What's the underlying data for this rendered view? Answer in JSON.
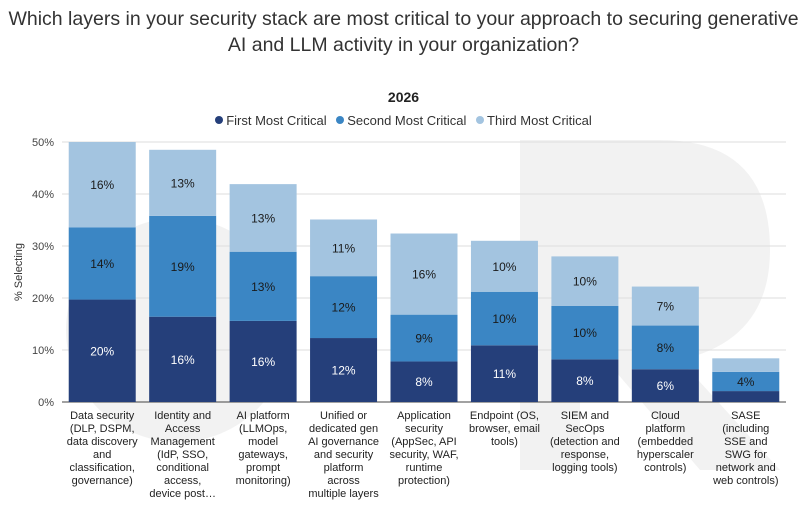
{
  "page": {
    "question": "Which layers in your security stack are most critical to your approach to securing generative AI and LLM activity in your organization?"
  },
  "colors": {
    "first": "#253f7a",
    "second": "#3b86c4",
    "third": "#a3c4e0",
    "axis": "#444444",
    "grid": "#dddddd"
  },
  "chart_data": {
    "type": "bar",
    "stacked": true,
    "title": "2026",
    "xlabel": "",
    "ylabel": "% Selecting",
    "ylim": [
      0,
      50
    ],
    "yticks": [
      "0%",
      "10%",
      "20%",
      "30%",
      "40%",
      "50%"
    ],
    "legend_position": "top-center",
    "categories": [
      "Data security (DLP, DSPM, data discovery and classification, governance)",
      "Identity and Access Management (IdP, SSO, conditional access, device post…",
      "AI platform (LLMOps, model gateways, prompt monitoring)",
      "Unified or dedicated gen AI governance and security platform across multiple layers",
      "Application security (AppSec, API security, WAF, runtime protection)",
      "Endpoint (OS, browser, email tools)",
      "SIEM and SecOps (detection and response, logging tools)",
      "Cloud platform (embedded hyperscaler controls)",
      "SASE (including SSE and SWG for network and web controls)"
    ],
    "category_lines": [
      [
        "Data security",
        "(DLP, DSPM,",
        "data discovery",
        "and",
        "classification,",
        "governance)"
      ],
      [
        "Identity and",
        "Access",
        "Management",
        "(IdP, SSO,",
        "conditional",
        "access,",
        "device post…"
      ],
      [
        "AI platform",
        "(LLMOps,",
        "model",
        "gateways,",
        "prompt",
        "monitoring)"
      ],
      [
        "Unified or",
        "dedicated gen",
        "AI governance",
        "and security",
        "platform",
        "across",
        "multiple layers"
      ],
      [
        "Application",
        "security",
        "(AppSec, API",
        "security, WAF,",
        "runtime",
        "protection)"
      ],
      [
        "Endpoint (OS,",
        "browser, email",
        "tools)"
      ],
      [
        "SIEM and",
        "SecOps",
        "(detection and",
        "response,",
        "logging tools)"
      ],
      [
        "Cloud",
        "platform",
        "(embedded",
        "hyperscaler",
        "controls)"
      ],
      [
        "SASE",
        "(including",
        "SSE and",
        "SWG for",
        "network and",
        "web controls)"
      ]
    ],
    "series": [
      {
        "name": "First Most Critical",
        "values": [
          19.7,
          16.4,
          15.6,
          12.3,
          7.8,
          10.9,
          8.2,
          6.3,
          2.1
        ],
        "labels": [
          "20%",
          "16%",
          "16%",
          "12%",
          "8%",
          "11%",
          "8%",
          "6%",
          ""
        ]
      },
      {
        "name": "Second Most Critical",
        "values": [
          13.9,
          19.4,
          13.3,
          11.9,
          9.0,
          10.3,
          10.3,
          8.4,
          3.7
        ],
        "labels": [
          "14%",
          "19%",
          "13%",
          "12%",
          "9%",
          "10%",
          "10%",
          "8%",
          "4%"
        ]
      },
      {
        "name": "Third Most Critical",
        "values": [
          16.4,
          12.7,
          13.0,
          10.9,
          15.6,
          9.8,
          9.5,
          7.5,
          2.6
        ],
        "labels": [
          "16%",
          "13%",
          "13%",
          "11%",
          "16%",
          "10%",
          "10%",
          "7%",
          ""
        ]
      }
    ]
  }
}
